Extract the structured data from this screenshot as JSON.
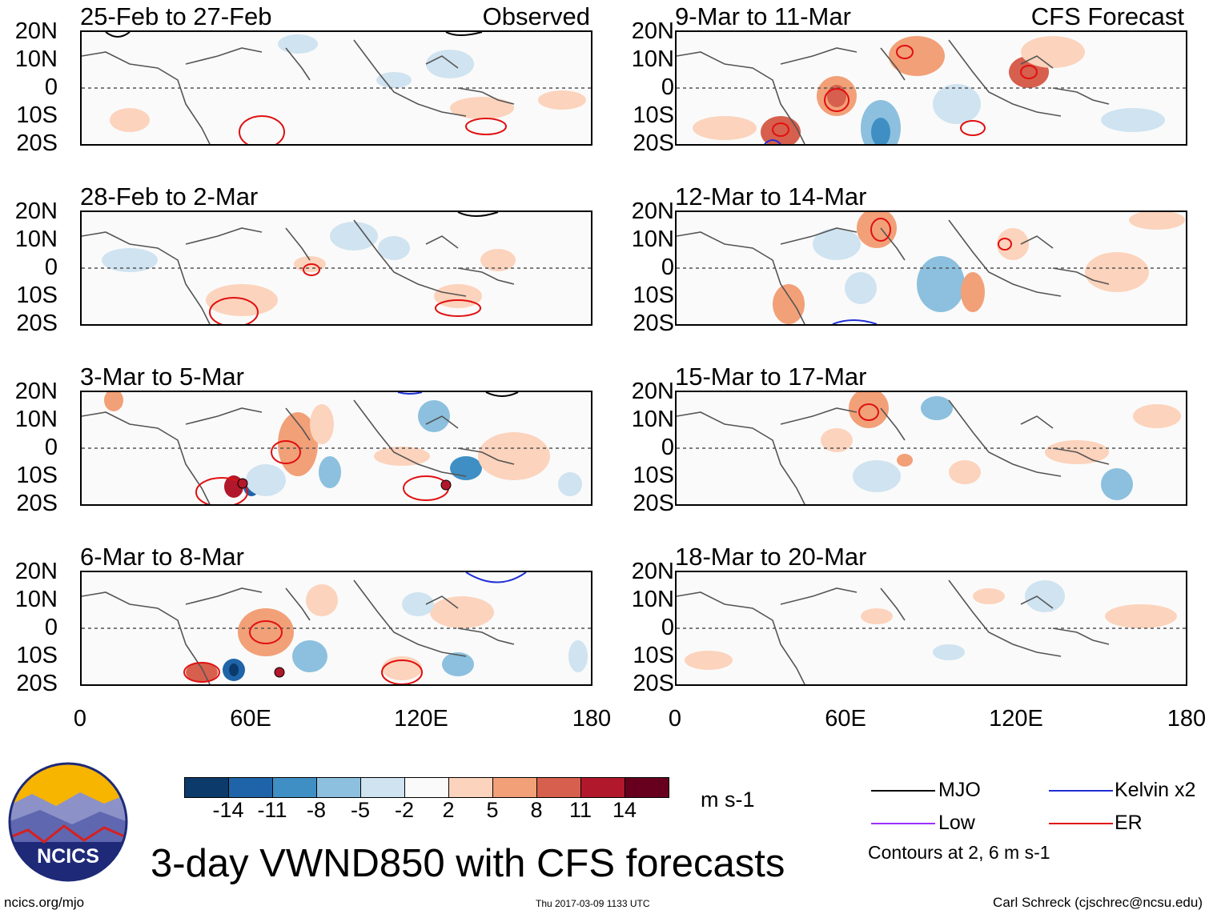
{
  "panels": [
    {
      "title": "25-Feb to 27-Feb",
      "tag": "Observed"
    },
    {
      "title": "9-Mar to 11-Mar",
      "tag": "CFS Forecast"
    },
    {
      "title": "28-Feb to 2-Mar"
    },
    {
      "title": "12-Mar to 14-Mar"
    },
    {
      "title": "3-Mar to 5-Mar"
    },
    {
      "title": "15-Mar to 17-Mar"
    },
    {
      "title": "6-Mar to 8-Mar"
    },
    {
      "title": "18-Mar to 20-Mar"
    }
  ],
  "y_axis": [
    "20N",
    "10N",
    "0",
    "10S",
    "20S"
  ],
  "x_axis": [
    "0",
    "60E",
    "120E",
    "180"
  ],
  "colorbar": {
    "labels": [
      "-14",
      "-11",
      "-8",
      "-5",
      "-2",
      "2",
      "5",
      "8",
      "11",
      "14"
    ],
    "colors": [
      "#0b3a6b",
      "#1f64a8",
      "#3f8fc4",
      "#8cc0de",
      "#cfe3f0",
      "#fafafa",
      "#fcd3bc",
      "#f2a078",
      "#d6604d",
      "#b2182b",
      "#67001f"
    ],
    "unit": "m s-1"
  },
  "legend": {
    "items": [
      {
        "label": "MJO",
        "color": "#000000"
      },
      {
        "label": "Kelvin x2",
        "color": "#1f2fd6"
      },
      {
        "label": "Low",
        "color": "#9b30ff"
      },
      {
        "label": "ER",
        "color": "#e01010"
      }
    ],
    "note": "Contours at 2, 6 m s-1"
  },
  "logo_text": "NCICS",
  "main_title": "3-day VWND850 with CFS forecasts",
  "footer": {
    "url": "ncics.org/mjo",
    "timestamp": "Thu 2017-03-09 1133 UTC",
    "credit": "Carl Schreck (cjschrec@ncsu.edu)"
  }
}
